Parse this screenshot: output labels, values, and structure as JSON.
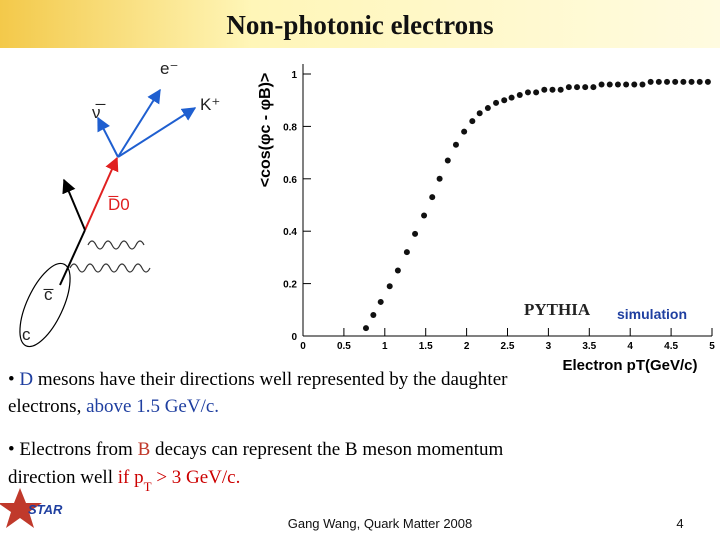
{
  "header": {
    "title": "Non-photonic electrons"
  },
  "diagram": {
    "labels": [
      "e⁻",
      "ν̅",
      "K⁺",
      "D̅0",
      "c̅",
      "c"
    ]
  },
  "chart_data": {
    "type": "scatter",
    "y_label": "<cos(φc - φB)>",
    "x_label": "Electron pT(GeV/c)",
    "annotations": [
      "PYTHIA",
      "simulation"
    ],
    "x": [
      0.77,
      0.86,
      0.95,
      1.06,
      1.16,
      1.27,
      1.37,
      1.48,
      1.58,
      1.67,
      1.77,
      1.87,
      1.97,
      2.07,
      2.16,
      2.26,
      2.36,
      2.46,
      2.55,
      2.65,
      2.75,
      2.85,
      2.95,
      3.05,
      3.15,
      3.25,
      3.35,
      3.45,
      3.55,
      3.65,
      3.75,
      3.85,
      3.95,
      4.05,
      4.15,
      4.25,
      4.35,
      4.45,
      4.55,
      4.65,
      4.75,
      4.85,
      4.95
    ],
    "values": [
      0.03,
      0.08,
      0.13,
      0.19,
      0.25,
      0.32,
      0.39,
      0.46,
      0.53,
      0.6,
      0.67,
      0.73,
      0.78,
      0.82,
      0.85,
      0.87,
      0.89,
      0.9,
      0.91,
      0.92,
      0.93,
      0.93,
      0.94,
      0.94,
      0.94,
      0.95,
      0.95,
      0.95,
      0.95,
      0.96,
      0.96,
      0.96,
      0.96,
      0.96,
      0.96,
      0.97,
      0.97,
      0.97,
      0.97,
      0.97,
      0.97,
      0.97,
      0.97
    ],
    "color": "#111111",
    "xlim": [
      0,
      5
    ],
    "xticks": [
      0,
      0.5,
      1,
      1.5,
      2,
      2.5,
      3,
      3.5,
      4,
      4.5,
      5
    ],
    "ylim": [
      0,
      1
    ],
    "yticks": [
      0,
      0.2,
      0.4,
      0.6,
      0.8,
      1
    ]
  },
  "bullets": [
    {
      "lines": [
        [
          {
            "text": "• ",
            "color": "#000000"
          },
          {
            "text": "D",
            "color": "#1f3fa0"
          },
          {
            "text": " mesons have their directions well represented by the daughter",
            "color": "#000000"
          }
        ],
        [
          {
            "text": "electrons, ",
            "color": "#000000"
          },
          {
            "text": "above 1.5 GeV/c.",
            "color": "#1f3fa0"
          }
        ]
      ]
    },
    {
      "lines": [
        [
          {
            "text": "• Electrons from ",
            "color": "#000000"
          },
          {
            "text": "B",
            "color": "#c0392b"
          },
          {
            "text": " decays can represent the B meson momentum",
            "color": "#000000"
          }
        ],
        [
          {
            "text": "direction well ",
            "color": "#000000"
          },
          {
            "text": "if p",
            "color": "#cc0000"
          },
          {
            "text": "T",
            "color": "#cc0000",
            "sub": true
          },
          {
            "text": " > 3 GeV/c.",
            "color": "#cc0000"
          }
        ]
      ]
    }
  ],
  "footer": {
    "logo": "STAR",
    "text": "Gang Wang, Quark Matter 2008",
    "page": "4"
  }
}
